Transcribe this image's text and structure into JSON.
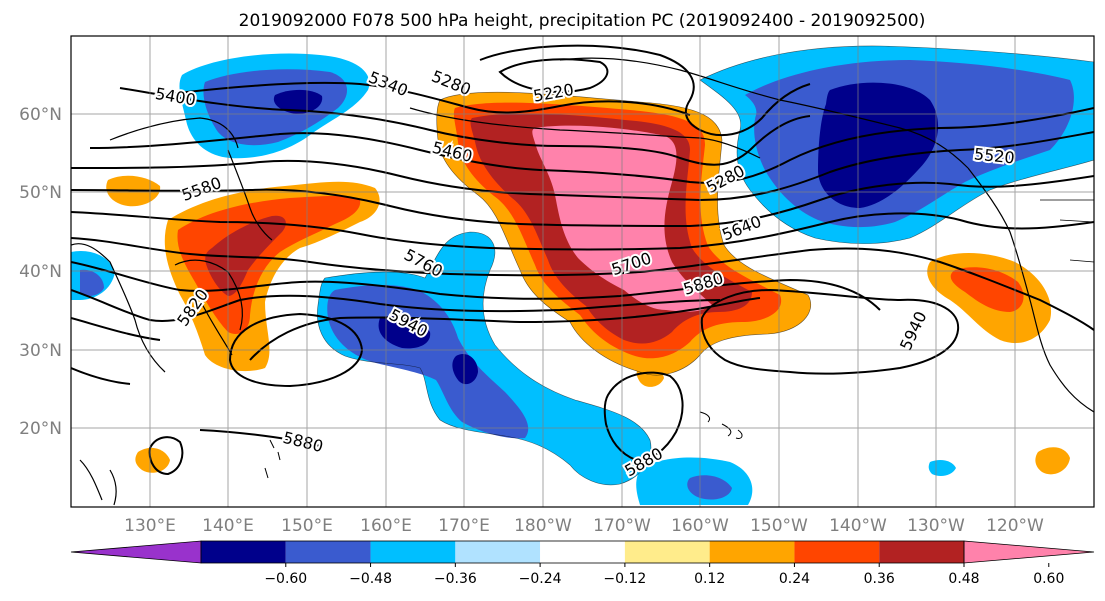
{
  "title": "2019092000 F078 500 hPa height, precipitation PC (2019092400 - 2019092500)",
  "lat_labels": [
    "60°N",
    "50°N",
    "40°N",
    "30°N",
    "20°N"
  ],
  "lon_labels": [
    "130°E",
    "140°E",
    "150°E",
    "160°E",
    "170°E",
    "180°W",
    "170°W",
    "160°W",
    "150°W",
    "140°W",
    "130°W",
    "120°W"
  ],
  "colorbar": {
    "colors": [
      "#9932cc",
      "#00008b",
      "#3a5bcf",
      "#00bfff",
      "#b0e2ff",
      "#ffffff",
      "#ffec8b",
      "#ffa500",
      "#ff4500",
      "#b22222",
      "#ff82ab"
    ],
    "tick_labels": [
      "−0.60",
      "−0.48",
      "−0.36",
      "−0.24",
      "−0.12",
      "0.12",
      "0.24",
      "0.36",
      "0.48",
      "0.60"
    ]
  },
  "contour_labels": [
    "5400",
    "5340",
    "5280",
    "5220",
    "5460",
    "5580",
    "5280",
    "5520",
    "5640",
    "5700",
    "5760",
    "5880",
    "5820",
    "5940",
    "5940",
    "5880",
    "5880"
  ]
}
